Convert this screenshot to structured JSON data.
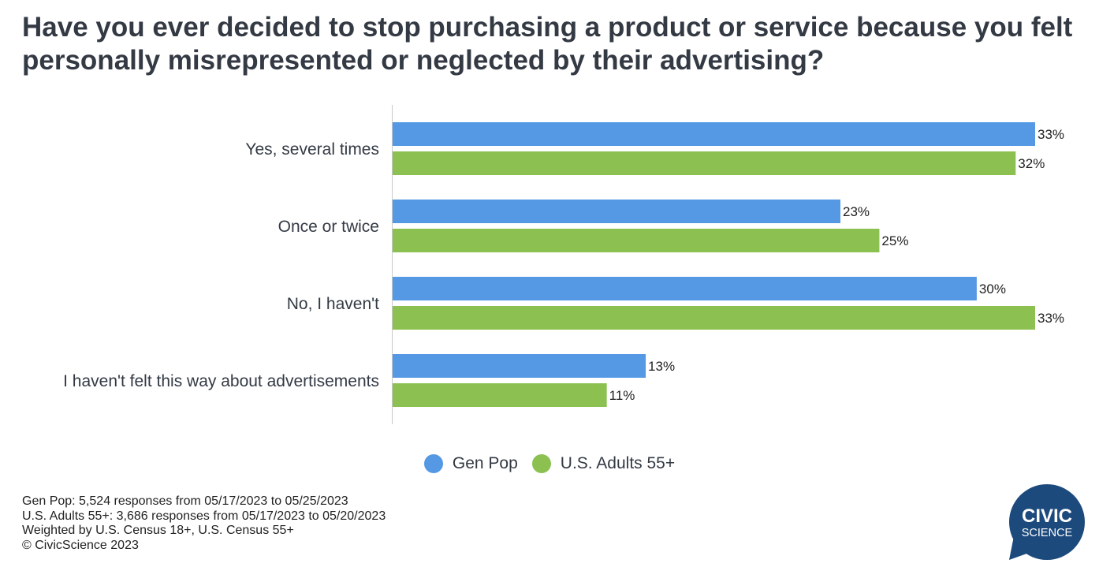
{
  "chart_data": {
    "type": "bar",
    "orientation": "horizontal",
    "title": "Have you ever decided to stop purchasing a product or service because you felt personally misrepresented or neglected by their advertising?",
    "categories": [
      "Yes, several times",
      "Once or twice",
      "No, I haven't",
      "I haven't felt this way about advertisements"
    ],
    "series": [
      {
        "name": "Gen Pop",
        "values": [
          33,
          23,
          30,
          13
        ],
        "labels": [
          "33%",
          "23%",
          "30%",
          "13%"
        ],
        "color": "#5599e4"
      },
      {
        "name": "U.S. Adults 55+",
        "values": [
          32,
          25,
          33,
          11
        ],
        "labels": [
          "32%",
          "25%",
          "33%",
          "11%"
        ],
        "color": "#8cc152"
      }
    ],
    "xlim": [
      0,
      33
    ],
    "grid": false,
    "legend": "bottom-center"
  },
  "notes": [
    "Gen Pop: 5,524 responses from 05/17/2023 to 05/25/2023",
    "U.S. Adults 55+: 3,686 responses from 05/17/2023 to 05/20/2023",
    "Weighted by U.S. Census 18+, U.S. Census 55+",
    "© CivicScience 2023"
  ],
  "logo": {
    "line1": "CIVIC",
    "line2": "SCIENCE",
    "color": "#1d4a7c"
  }
}
